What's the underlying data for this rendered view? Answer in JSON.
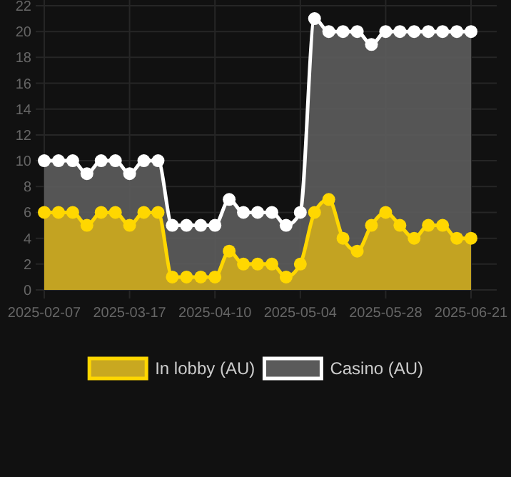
{
  "chart_data": {
    "type": "area",
    "categories": [
      "2025-02-07",
      null,
      null,
      null,
      null,
      null,
      "2025-03-17",
      null,
      null,
      null,
      null,
      null,
      "2025-04-10",
      null,
      null,
      null,
      null,
      null,
      "2025-05-04",
      null,
      null,
      null,
      null,
      null,
      "2025-05-28",
      null,
      null,
      null,
      null,
      null,
      "2025-06-21"
    ],
    "series": [
      {
        "name": "In lobby (AU)",
        "color": "#ffd700",
        "values": [
          6,
          6,
          6,
          5,
          6,
          6,
          5,
          6,
          6,
          1,
          1,
          1,
          1,
          3,
          2,
          2,
          2,
          1,
          2,
          6,
          7,
          4,
          3,
          5,
          6,
          5,
          4,
          5,
          5,
          4,
          4
        ]
      },
      {
        "name": "Casino (AU)",
        "color": "#ffffff",
        "values": [
          10,
          10,
          10,
          9,
          10,
          10,
          9,
          10,
          10,
          5,
          5,
          5,
          5,
          7,
          6,
          6,
          6,
          5,
          6,
          21,
          20,
          20,
          20,
          19,
          20,
          20,
          20,
          20,
          20,
          20,
          20
        ]
      }
    ],
    "ylim": [
      0,
      22
    ],
    "yticks": [
      0,
      2,
      4,
      6,
      8,
      10,
      12,
      14,
      16,
      18,
      20,
      22
    ],
    "grid": true,
    "legend": "bottom",
    "marker": "circle"
  }
}
